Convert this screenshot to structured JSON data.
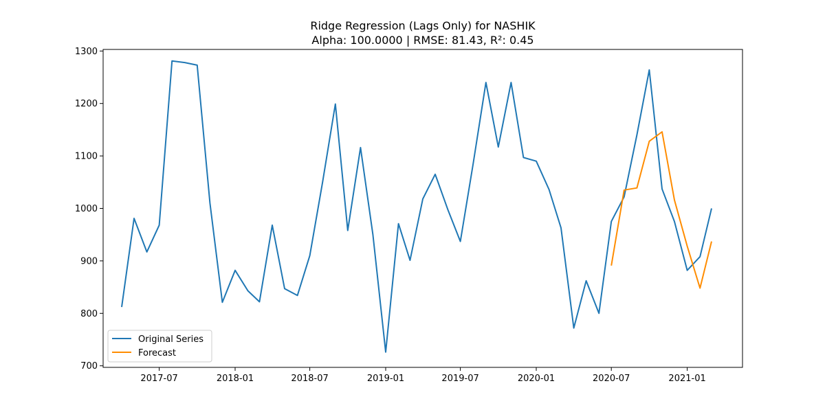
{
  "chart_data": {
    "type": "line",
    "title": "Ridge Regression (Lags Only) for NASHIK",
    "subtitle": "Alpha: 100.0000 | RMSE: 81.43, R²: 0.45",
    "xlabel": "",
    "ylabel": "",
    "xlim": [
      "2017-02-15",
      "2021-05-15"
    ],
    "ylim": [
      697,
      1303
    ],
    "x_ticks": [
      "2017-07",
      "2018-01",
      "2018-07",
      "2019-01",
      "2019-07",
      "2020-01",
      "2020-07",
      "2021-01"
    ],
    "y_ticks": [
      700,
      800,
      900,
      1000,
      1100,
      1200,
      1300
    ],
    "grid": false,
    "legend_position": "lower-left",
    "series": [
      {
        "name": "Original Series",
        "color": "#1f77b4",
        "x": [
          "2017-04",
          "2017-05",
          "2017-06",
          "2017-07",
          "2017-08",
          "2017-09",
          "2017-10",
          "2017-11",
          "2017-12",
          "2018-01",
          "2018-02",
          "2018-03",
          "2018-04",
          "2018-05",
          "2018-06",
          "2018-07",
          "2018-08",
          "2018-09",
          "2018-10",
          "2018-11",
          "2018-12",
          "2019-01",
          "2019-02",
          "2019-03",
          "2019-04",
          "2019-05",
          "2019-06",
          "2019-07",
          "2019-08",
          "2019-09",
          "2019-10",
          "2019-11",
          "2019-12",
          "2020-01",
          "2020-02",
          "2020-03",
          "2020-04",
          "2020-05",
          "2020-06",
          "2020-07",
          "2020-08",
          "2020-09",
          "2020-10",
          "2020-11",
          "2020-12",
          "2021-01",
          "2021-02",
          "2021-03"
        ],
        "values": [
          812,
          981,
          917,
          968,
          1281,
          1278,
          1273,
          1010,
          821,
          882,
          843,
          822,
          968,
          847,
          834,
          910,
          1050,
          1199,
          958,
          1116,
          950,
          726,
          971,
          901,
          1018,
          1065,
          997,
          937,
          1085,
          1240,
          1117,
          1240,
          1097,
          1090,
          1036,
          963,
          772,
          862,
          800,
          975,
          1022,
          1140,
          1264,
          1037,
          975,
          882,
          908,
          1000
        ]
      },
      {
        "name": "Forecast",
        "color": "#ff8c00",
        "x": [
          "2020-07",
          "2020-08",
          "2020-09",
          "2020-10",
          "2020-11",
          "2020-12",
          "2021-01",
          "2021-02",
          "2021-03"
        ],
        "values": [
          891,
          1035,
          1039,
          1128,
          1146,
          1016,
          928,
          848,
          937
        ]
      }
    ]
  }
}
